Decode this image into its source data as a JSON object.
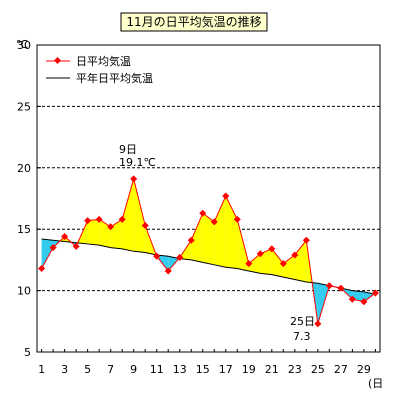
{
  "chart_data": {
    "type": "line",
    "title": "11月の日平均気温の推移",
    "ylabel": "℃",
    "xlabel": "(日",
    "ylim": [
      5,
      30
    ],
    "yticks": [
      5,
      10,
      15,
      20,
      25,
      30
    ],
    "xticks": [
      1,
      3,
      5,
      7,
      9,
      11,
      13,
      15,
      17,
      19,
      21,
      23,
      25,
      27,
      29
    ],
    "grid": "horizontal-dashed",
    "legend_position": "top-left",
    "x": [
      1,
      2,
      3,
      4,
      5,
      6,
      7,
      8,
      9,
      10,
      11,
      12,
      13,
      14,
      15,
      16,
      17,
      18,
      19,
      20,
      21,
      22,
      23,
      24,
      25,
      26,
      27,
      28,
      29,
      30
    ],
    "series": [
      {
        "name": "日平均気温",
        "color": "#ff0000",
        "values": [
          11.8,
          13.5,
          14.4,
          13.6,
          15.7,
          15.8,
          15.2,
          15.8,
          19.1,
          15.3,
          12.8,
          11.6,
          12.7,
          14.1,
          16.3,
          15.6,
          17.7,
          15.8,
          12.2,
          13.0,
          13.4,
          12.2,
          12.9,
          14.1,
          7.3,
          10.4,
          10.2,
          9.3,
          9.1,
          9.8
        ]
      },
      {
        "name": "平年日平均気温",
        "color": "#000000",
        "values": [
          14.2,
          14.1,
          14.0,
          13.9,
          13.8,
          13.7,
          13.5,
          13.4,
          13.2,
          13.1,
          12.9,
          12.8,
          12.6,
          12.5,
          12.3,
          12.1,
          11.9,
          11.8,
          11.6,
          11.4,
          11.3,
          11.1,
          10.9,
          10.7,
          10.6,
          10.4,
          10.2,
          10.0,
          9.9,
          9.7
        ]
      }
    ],
    "fill_above_color": "#ffff00",
    "fill_below_color": "#33ccee",
    "annotations": [
      {
        "day_label": "9日",
        "value_label": "19.1℃"
      },
      {
        "day_label": "25日",
        "value_label": "7.3"
      }
    ]
  }
}
